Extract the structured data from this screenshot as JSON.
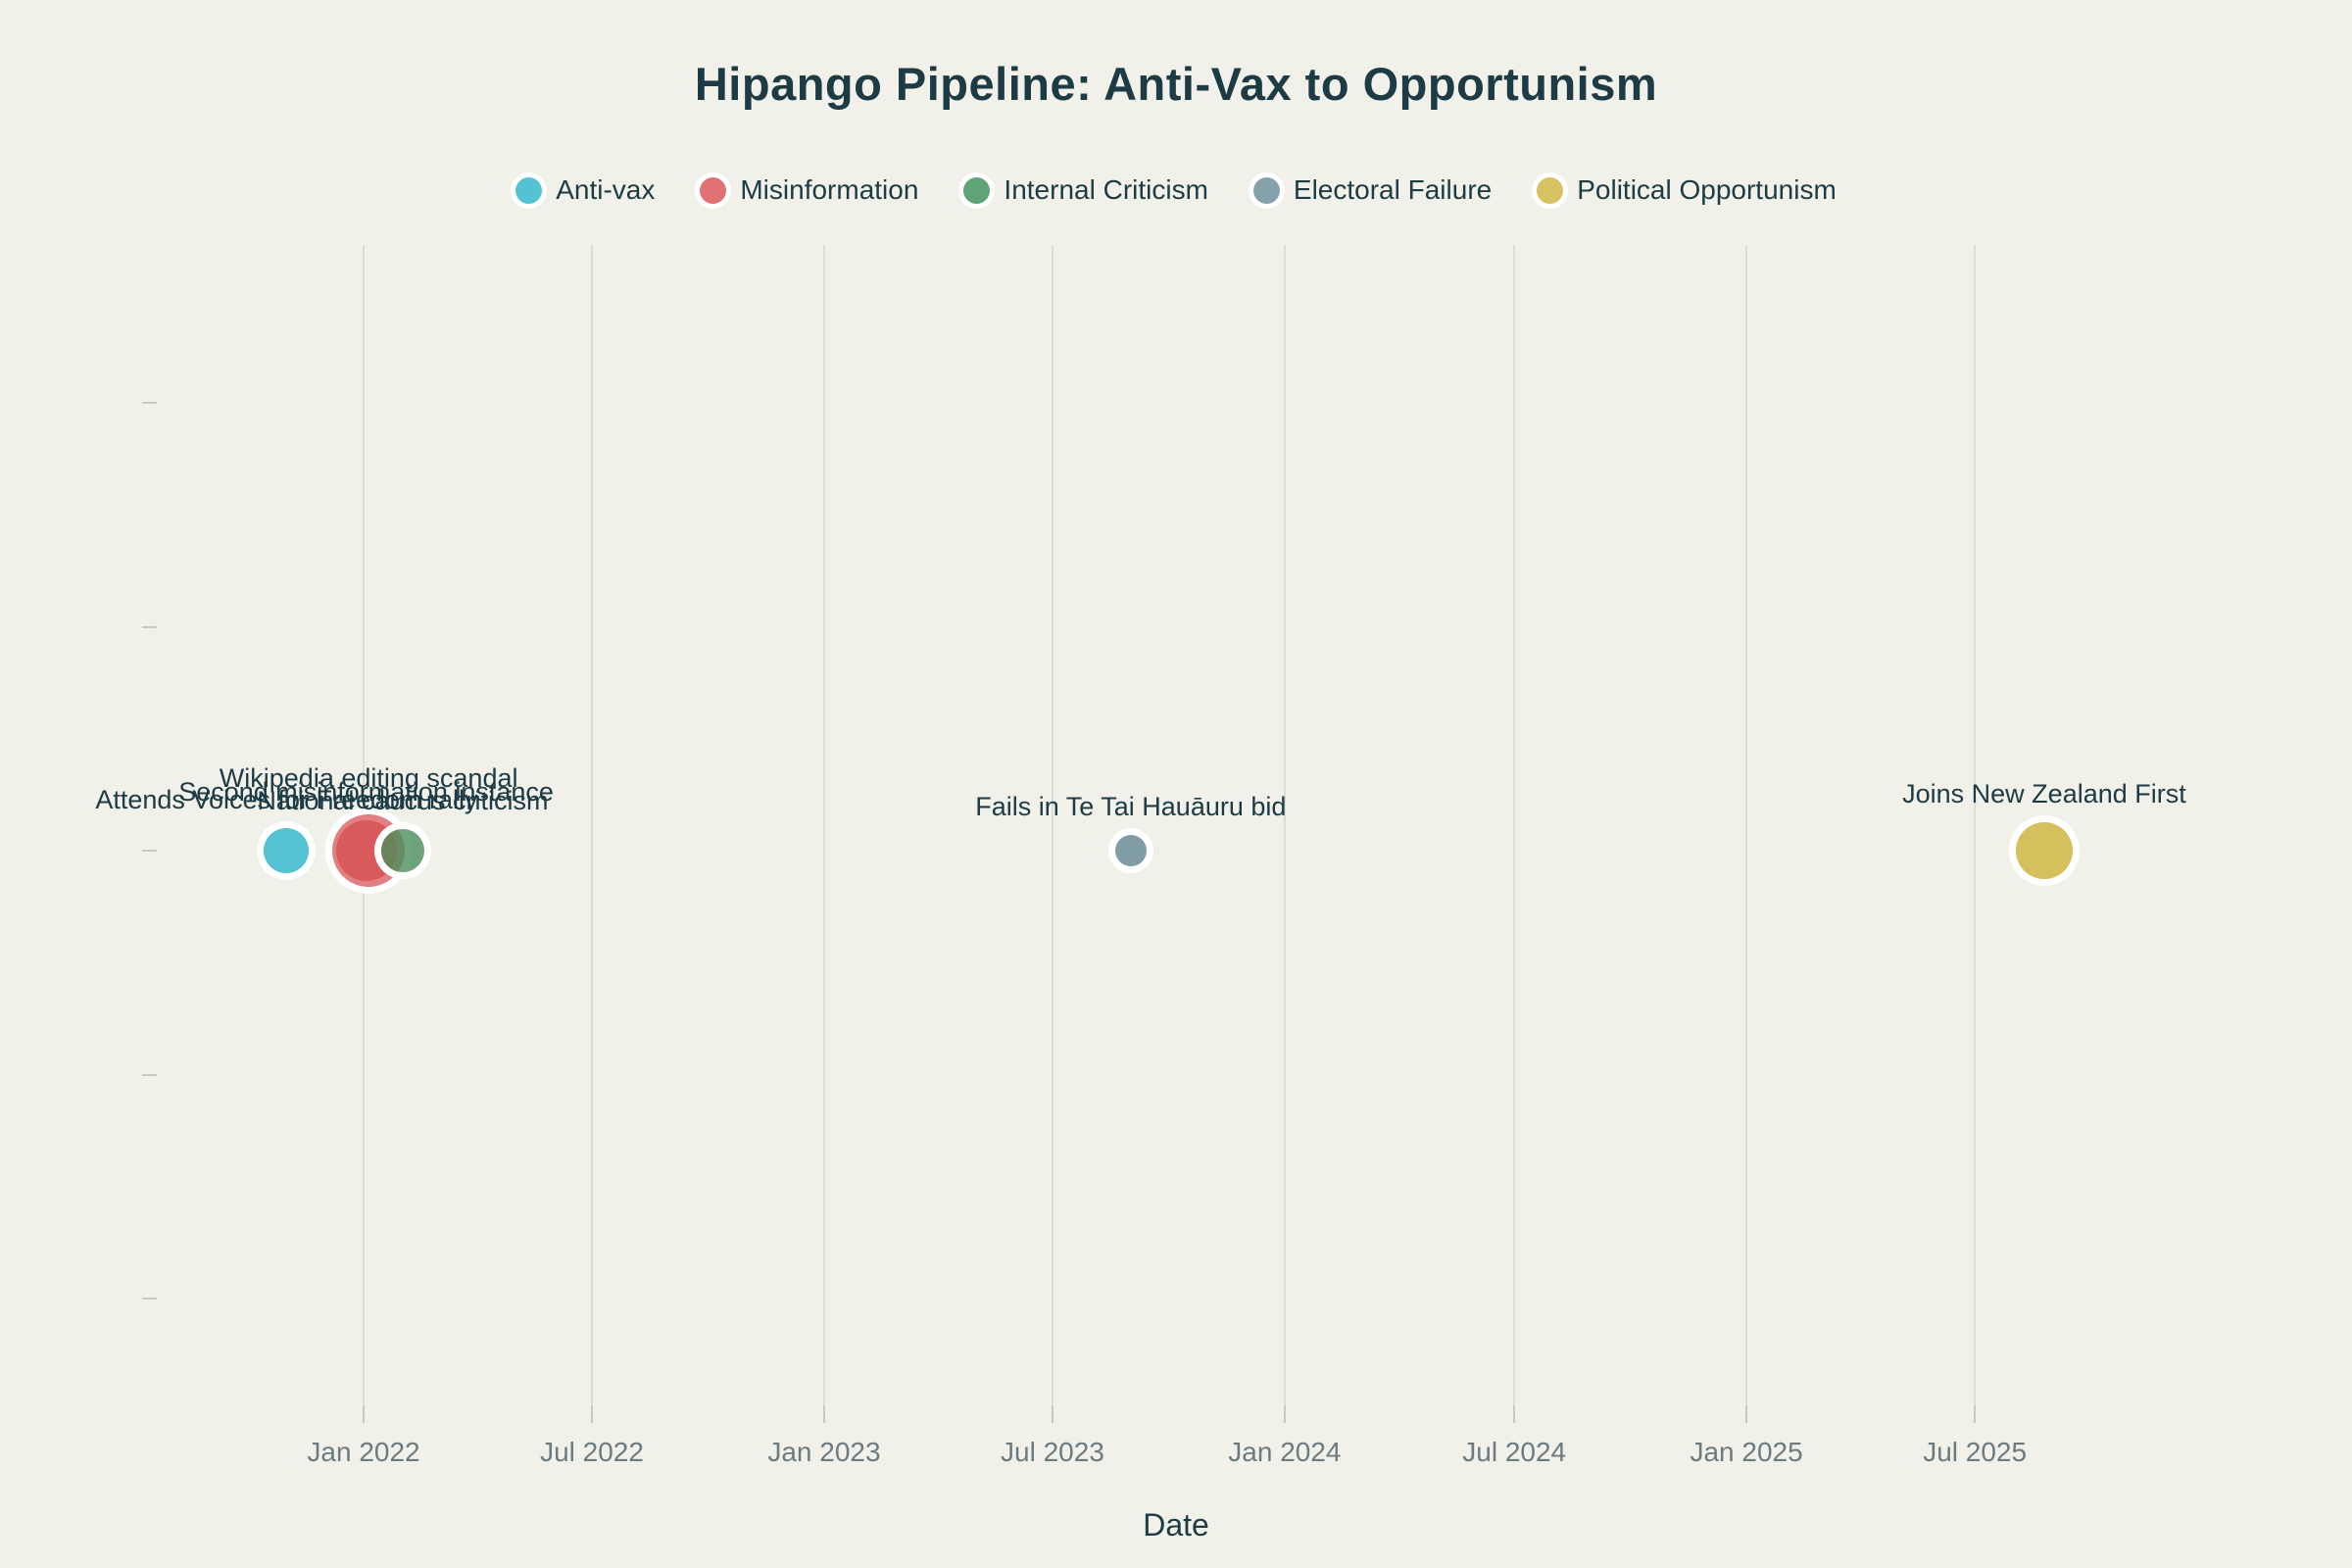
{
  "title": "Hipango Pipeline: Anti-Vax to Opportunism",
  "xlabel": "Date",
  "colors": {
    "background": "#f1f1ea",
    "title_text": "#1c3b45",
    "tick_text": "#6b7b80",
    "gridline": "#dcded5",
    "marker_ring": "#ffffff"
  },
  "legend": [
    {
      "label": "Anti-vax",
      "color": "#53c3d4",
      "swatch": "circle-icon"
    },
    {
      "label": "Misinformation",
      "color": "#e17173",
      "swatch": "circle-icon"
    },
    {
      "label": "Internal Criticism",
      "color": "#5fa475",
      "swatch": "circle-icon"
    },
    {
      "label": "Electoral Failure",
      "color": "#85a1ab",
      "swatch": "circle-icon"
    },
    {
      "label": "Political Opportunism",
      "color": "#d7c160",
      "swatch": "circle-icon"
    }
  ],
  "chart_data": {
    "type": "scatter",
    "title": "Hipango Pipeline: Anti-Vax to Opportunism",
    "xlabel": "Date",
    "ylabel": "",
    "legend_position": "top-center",
    "grid": "vertical-only",
    "x_range_approx": [
      "2021-07",
      "2026-04"
    ],
    "x_ticks": [
      {
        "label": "Jan 2022",
        "date": "2022-01-01"
      },
      {
        "label": "Jul 2022",
        "date": "2022-07-01"
      },
      {
        "label": "Jan 2023",
        "date": "2023-01-01"
      },
      {
        "label": "Jul 2023",
        "date": "2023-07-01"
      },
      {
        "label": "Jan 2024",
        "date": "2024-01-01"
      },
      {
        "label": "Jul 2024",
        "date": "2024-07-01"
      },
      {
        "label": "Jan 2025",
        "date": "2025-01-01"
      },
      {
        "label": "Jul 2025",
        "date": "2025-07-01"
      }
    ],
    "y_axis": {
      "tick_count": 5,
      "labels_visible": false,
      "all_points_on_middle_row": true
    },
    "category_fills": {
      "Anti-vax": "rgba(56,188,206,0.85)",
      "Misinformation": "rgba(214,77,80,0.72)",
      "Internal Criticism": "rgba(77,143,94,0.80)",
      "Electoral Failure": "rgba(116,148,158,0.90)",
      "Political Opportunism": "rgba(211,188,80,0.92)"
    },
    "points": [
      {
        "label": "Attends Voices for Freedom rally",
        "category": "Anti-vax",
        "date": "2021-11-01",
        "marker_radius_px": 23,
        "label_dy": 0
      },
      {
        "label": "Second misinformation instance",
        "category": "Misinformation",
        "date": "2022-01-03",
        "marker_radius_px": 31,
        "label_dy": 0
      },
      {
        "label": "Wikipedia editing scandal",
        "category": "Misinformation",
        "date": "2022-01-05",
        "marker_radius_px": 37,
        "label_dy": -8
      },
      {
        "label": "National caucus criticism",
        "category": "Internal Criticism",
        "date": "2022-02-01",
        "marker_radius_px": 22,
        "label_dy": 0
      },
      {
        "label": "Fails in Te Tai Hauāuru bid",
        "category": "Electoral Failure",
        "date": "2023-09-01",
        "marker_radius_px": 16,
        "label_dy": 0
      },
      {
        "label": "Joins New Zealand First",
        "category": "Political Opportunism",
        "date": "2025-08-25",
        "marker_radius_px": 29,
        "label_dy": 0
      }
    ]
  }
}
